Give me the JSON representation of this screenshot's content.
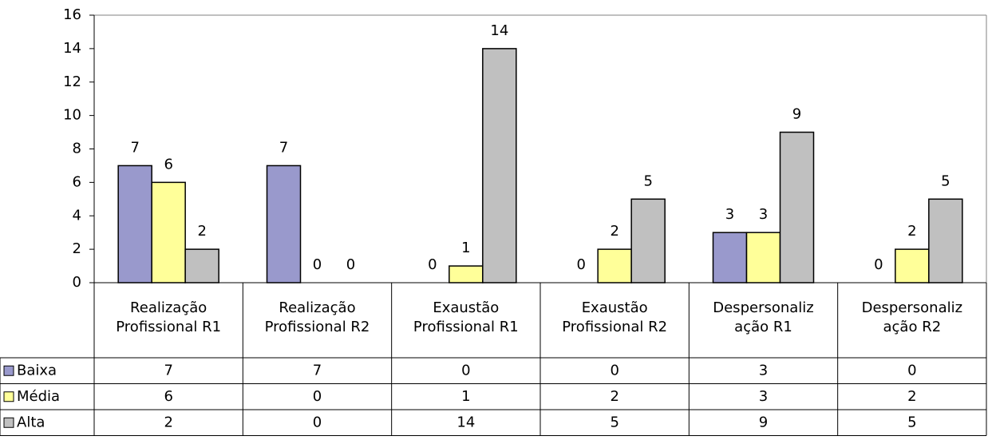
{
  "chart_data": {
    "type": "bar",
    "categories": [
      [
        "Realização",
        "Profissional R1"
      ],
      [
        "Realização",
        "Profissional R2"
      ],
      [
        "Exaustão",
        "Profissional R1"
      ],
      [
        "Exaustão",
        "Profissional R2"
      ],
      [
        "Despersonaliz",
        "ação R1"
      ],
      [
        "Despersonaliz",
        "ação R2"
      ]
    ],
    "series": [
      {
        "name": "Baixa",
        "color": "#9999cc",
        "values": [
          7,
          7,
          0,
          0,
          3,
          0
        ]
      },
      {
        "name": "Média",
        "color": "#ffff99",
        "values": [
          6,
          0,
          1,
          2,
          3,
          2
        ]
      },
      {
        "name": "Alta",
        "color": "#c0c0c0",
        "values": [
          2,
          0,
          14,
          5,
          9,
          5
        ]
      }
    ],
    "ylim": [
      0,
      16
    ],
    "yticks": [
      0,
      2,
      4,
      6,
      8,
      10,
      12,
      14,
      16
    ],
    "data_table": true
  }
}
